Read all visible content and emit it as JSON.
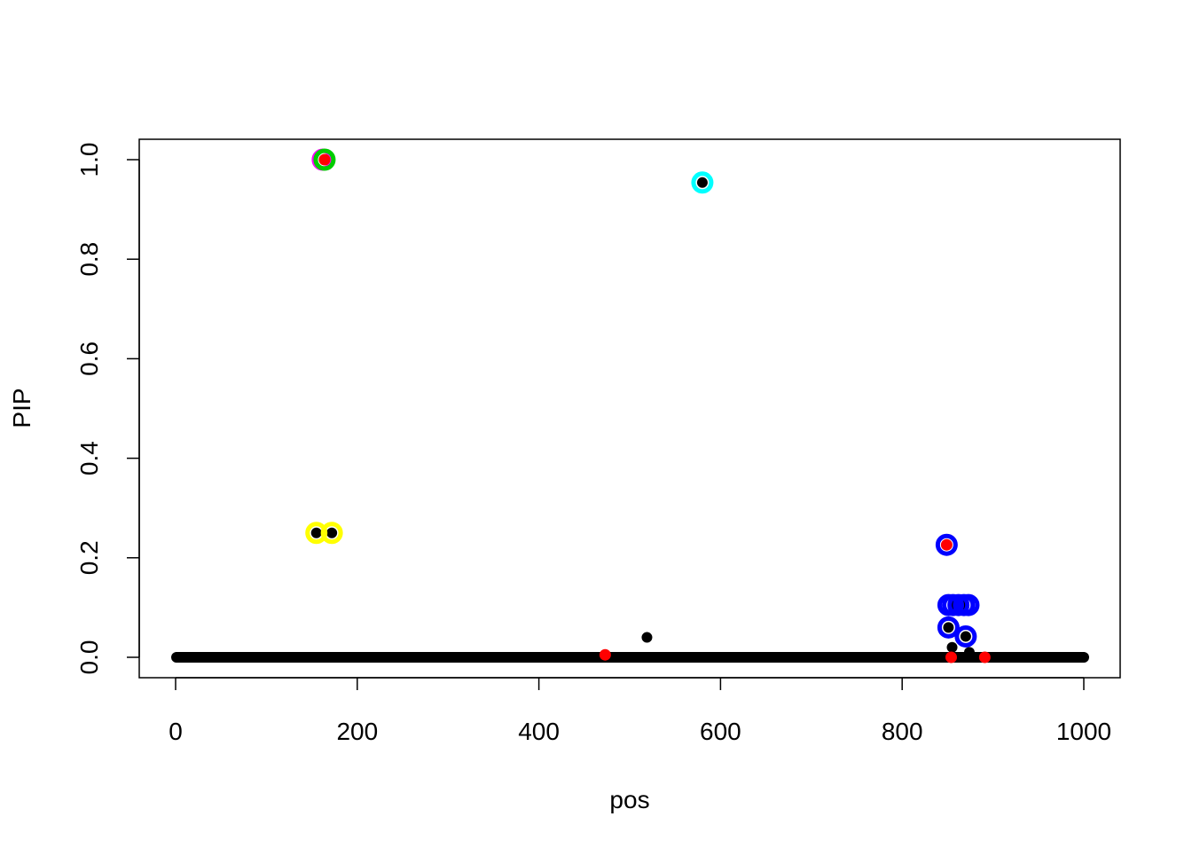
{
  "chart_data": {
    "type": "scatter",
    "title": "",
    "xlabel": "pos",
    "ylabel": "PIP",
    "xlim": [
      -20,
      1040
    ],
    "ylim": [
      -0.04,
      1.04
    ],
    "xticks": [
      0,
      200,
      400,
      600,
      800,
      1000
    ],
    "xtick_labels": [
      "0",
      "200",
      "400",
      "600",
      "800",
      "1000"
    ],
    "yticks": [
      0.0,
      0.2,
      0.4,
      0.6,
      0.8,
      1.0
    ],
    "ytick_labels": [
      "0.0",
      "0.2",
      "0.4",
      "0.6",
      "0.8",
      "1.0"
    ],
    "grid": false,
    "point_color": "#000000",
    "baseline_points": {
      "pos_from": 1,
      "pos_to": 1000,
      "pip": 0
    },
    "points": [
      {
        "pos": 519,
        "pip": 0.04
      },
      {
        "pos": 855,
        "pip": 0.02
      },
      {
        "pos": 874,
        "pip": 0.01
      },
      {
        "pos": 155,
        "pip": 0.25
      },
      {
        "pos": 172,
        "pip": 0.25
      },
      {
        "pos": 580,
        "pip": 0.954
      },
      {
        "pos": 851,
        "pip": 0.06
      },
      {
        "pos": 870,
        "pip": 0.042
      },
      {
        "pos": 856,
        "pip": 0.105
      },
      {
        "pos": 862,
        "pip": 0.105
      },
      {
        "pos": 868,
        "pip": 0.105
      }
    ],
    "credible_sets": [
      {
        "color": "#FF00FF",
        "points": [
          {
            "pos": 162,
            "pip": 1.0
          }
        ]
      },
      {
        "color": "#00CC00",
        "points": [
          {
            "pos": 164,
            "pip": 1.0
          }
        ]
      },
      {
        "color": "#FFFF00",
        "points": [
          {
            "pos": 155,
            "pip": 0.25
          },
          {
            "pos": 172,
            "pip": 0.25
          }
        ]
      },
      {
        "color": "#00FFFF",
        "points": [
          {
            "pos": 580,
            "pip": 0.954
          }
        ]
      },
      {
        "color": "#0000FF",
        "points": [
          {
            "pos": 849,
            "pip": 0.226
          },
          {
            "pos": 851,
            "pip": 0.105
          },
          {
            "pos": 856,
            "pip": 0.105
          },
          {
            "pos": 862,
            "pip": 0.105
          },
          {
            "pos": 868,
            "pip": 0.105
          },
          {
            "pos": 873,
            "pip": 0.105
          },
          {
            "pos": 851,
            "pip": 0.06
          },
          {
            "pos": 870,
            "pip": 0.042
          }
        ]
      }
    ],
    "true_effects": {
      "color": "#FF0000",
      "points": [
        {
          "pos": 164,
          "pip": 1.0
        },
        {
          "pos": 473,
          "pip": 0.005
        },
        {
          "pos": 849,
          "pip": 0.226
        },
        {
          "pos": 854,
          "pip": 0.0
        },
        {
          "pos": 891,
          "pip": 0.0
        }
      ]
    }
  }
}
